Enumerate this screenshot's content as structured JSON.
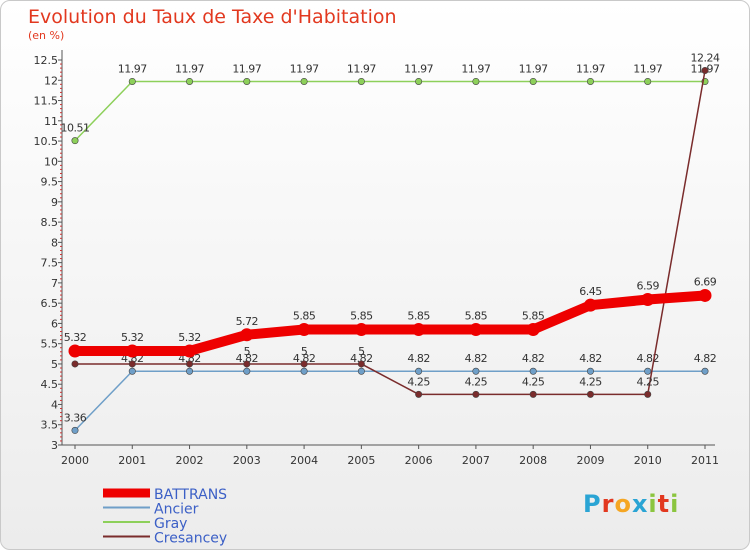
{
  "header": {
    "title": "Evolution du Taux de Taxe d'Habitation",
    "subtitle": "(en %)"
  },
  "logo": {
    "text": "Proxiti",
    "letters": [
      "P",
      "r",
      "o",
      "x",
      "i",
      "t",
      "i"
    ],
    "colors": [
      "#2aa4d4",
      "#e2381f",
      "#f5a623",
      "#2aa4d4",
      "#8bc53f",
      "#e2381f",
      "#8bc53f"
    ]
  },
  "chart_data": {
    "type": "line",
    "x": [
      2000,
      2001,
      2002,
      2003,
      2004,
      2005,
      2006,
      2007,
      2008,
      2009,
      2010,
      2011
    ],
    "xtick_labels": [
      "2000",
      "2001",
      "2002",
      "2003",
      "2004",
      "2005",
      "2006",
      "2007",
      "2008",
      "2009",
      "2010",
      "2011"
    ],
    "ylim": [
      3,
      12.5
    ],
    "yticks": [
      3,
      3.5,
      4,
      4.5,
      5,
      5.5,
      6,
      6.5,
      7,
      7.5,
      8,
      8.5,
      9,
      9.5,
      10,
      10.5,
      11,
      11.5,
      12,
      12.5
    ],
    "ytick_labels": [
      "3",
      "3.5",
      "4",
      "4.5",
      "5",
      "5.5",
      "6",
      "6.5",
      "7",
      "7.5",
      "8",
      "8.5",
      "9",
      "9.5",
      "10",
      "10.5",
      "11",
      "11.5",
      "12",
      "12.5"
    ],
    "grid": false,
    "legend_position": "bottom-left",
    "series": [
      {
        "name": "Gray",
        "color": "#8dd05a",
        "values": [
          10.51,
          11.97,
          11.97,
          11.97,
          11.97,
          11.97,
          11.97,
          11.97,
          11.97,
          11.97,
          11.97,
          11.97
        ],
        "labels": [
          "10.51",
          "11.97",
          "11.97",
          "11.97",
          "11.97",
          "11.97",
          "11.97",
          "11.97",
          "11.97",
          "11.97",
          "11.97",
          "11.97"
        ]
      },
      {
        "name": "Ancier",
        "color": "#6f9fc8",
        "values": [
          3.36,
          4.82,
          4.82,
          4.82,
          4.82,
          4.82,
          4.82,
          4.82,
          4.82,
          4.82,
          4.82,
          4.82
        ],
        "labels": [
          "3.36",
          "4.82",
          "4.82",
          "4.82",
          "4.82",
          "4.82",
          "4.82",
          "4.82",
          "4.82",
          "4.82",
          "4.82",
          "4.82"
        ]
      },
      {
        "name": "Cresancey",
        "color": "#7a2c2c",
        "values": [
          5,
          5,
          5,
          5,
          5,
          5,
          4.25,
          4.25,
          4.25,
          4.25,
          4.25,
          12.24
        ],
        "labels": [
          "",
          "",
          "",
          "5",
          "5",
          "5",
          "4.25",
          "4.25",
          "4.25",
          "4.25",
          "4.25",
          "12.24"
        ]
      },
      {
        "name": "BATTRANS",
        "color": "#ee0000",
        "values": [
          5.32,
          5.32,
          5.32,
          5.72,
          5.85,
          5.85,
          5.85,
          5.85,
          5.85,
          6.45,
          6.59,
          6.69
        ],
        "labels": [
          "5.32",
          "5.32",
          "5.32",
          "5.72",
          "5.85",
          "5.85",
          "5.85",
          "5.85",
          "5.85",
          "6.45",
          "6.59",
          "6.69"
        ]
      }
    ]
  }
}
